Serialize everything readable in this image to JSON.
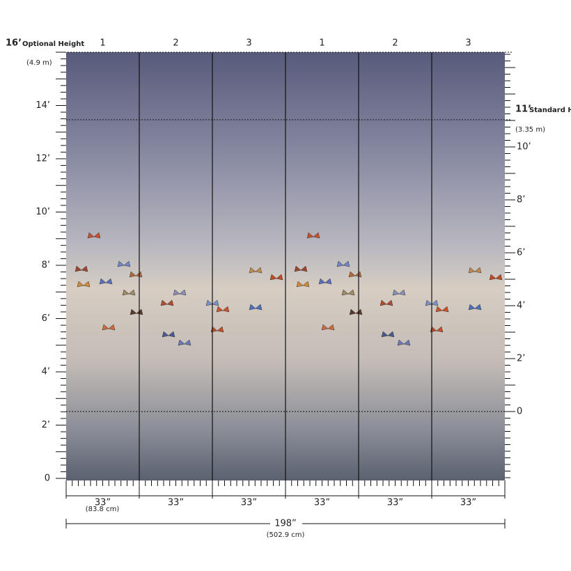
{
  "optional_height": {
    "feet": "16’",
    "label": "Optional Height",
    "metric": "(4.9 m)"
  },
  "standard_height": {
    "feet": "11’",
    "label": "Standard Height",
    "metric": "(3.35 m)"
  },
  "panels": [
    "1",
    "2",
    "3",
    "1",
    "2",
    "3"
  ],
  "left_scale": [
    "0",
    "2’",
    "4’",
    "6’",
    "8’",
    "10’",
    "12’",
    "14’"
  ],
  "right_scale": [
    "0",
    "2’",
    "4’",
    "6’",
    "8’",
    "10’"
  ],
  "panel_widths": [
    "33”",
    "33”",
    "33”",
    "33”",
    "33”",
    "33”"
  ],
  "panel_width_metric": "(83.8 cm)",
  "total_width": "198”",
  "total_width_metric": "(502.9 cm)"
}
